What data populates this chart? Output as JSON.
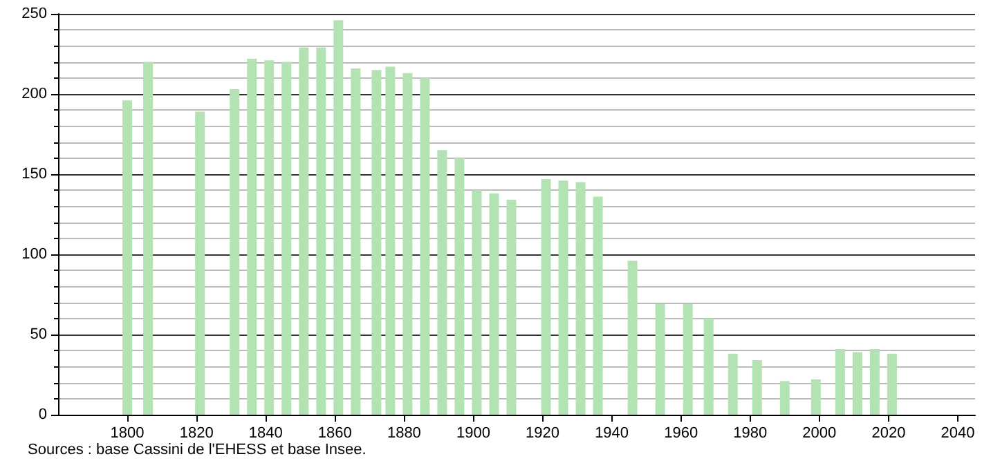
{
  "chart_data": {
    "type": "bar",
    "color": "#b3e3b3",
    "x": [
      1800,
      1806,
      1821,
      1831,
      1836,
      1841,
      1846,
      1851,
      1856,
      1861,
      1866,
      1872,
      1876,
      1881,
      1886,
      1891,
      1896,
      1901,
      1906,
      1911,
      1921,
      1926,
      1931,
      1936,
      1946,
      1954,
      1962,
      1968,
      1975,
      1982,
      1990,
      1999,
      2006,
      2011,
      2016,
      2021
    ],
    "values": [
      196,
      220,
      189,
      203,
      222,
      221,
      220,
      229,
      229,
      246,
      216,
      215,
      217,
      213,
      210,
      165,
      160,
      140,
      138,
      134,
      147,
      146,
      145,
      136,
      96,
      69,
      69,
      60,
      38,
      34,
      21,
      22,
      41,
      39,
      41,
      38
    ],
    "xlim": [
      1780,
      2045
    ],
    "xticks": [
      1800,
      1820,
      1840,
      1860,
      1880,
      1900,
      1920,
      1940,
      1960,
      1980,
      2000,
      2020,
      2040
    ],
    "ylim": [
      0,
      250
    ],
    "yticks": [
      0,
      50,
      100,
      150,
      200,
      250
    ],
    "grid": "y",
    "annotations": [
      "Sources : base Cassini de l'EHESS et base Insee."
    ]
  }
}
